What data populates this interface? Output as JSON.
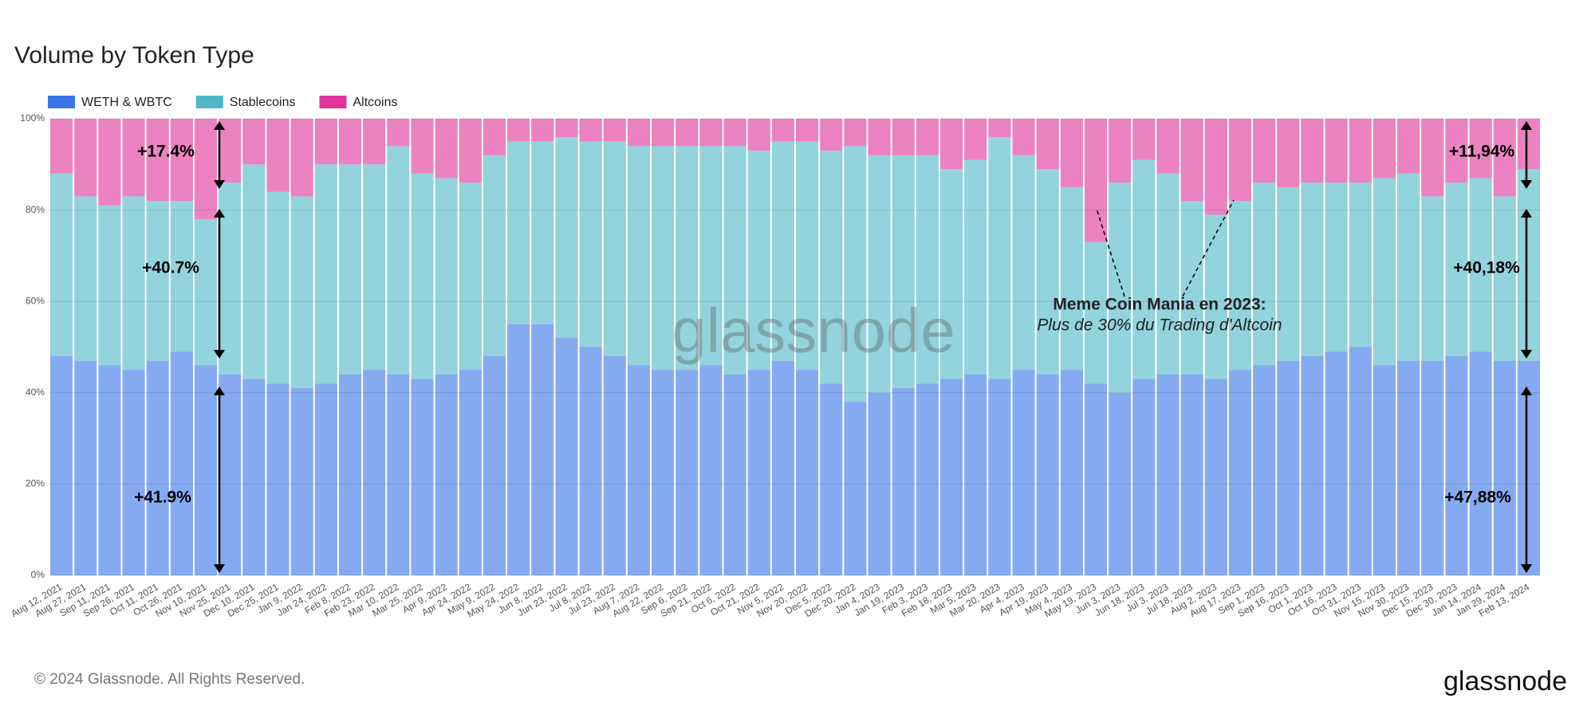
{
  "chart_data": {
    "type": "stacked_bar_100",
    "title": "Volume by Token Type",
    "categories": [
      "Aug 12, 2021",
      "Aug 27, 2021",
      "Sep 11, 2021",
      "Sep 26, 2021",
      "Oct 11, 2021",
      "Oct 26, 2021",
      "Nov 10, 2021",
      "Nov 25, 2021",
      "Dec 10, 2021",
      "Dec 25, 2021",
      "Jan 9, 2022",
      "Jan 24, 2022",
      "Feb 8, 2022",
      "Feb 23, 2022",
      "Mar 10, 2022",
      "Mar 25, 2022",
      "Apr 9, 2022",
      "Apr 24, 2022",
      "May 9, 2022",
      "May 24, 2022",
      "Jun 8, 2022",
      "Jun 23, 2022",
      "Jul 8, 2022",
      "Jul 23, 2022",
      "Aug 7, 2022",
      "Aug 22, 2022",
      "Sep 6, 2022",
      "Sep 21, 2022",
      "Oct 6, 2022",
      "Oct 21, 2022",
      "Nov 5, 2022",
      "Nov 20, 2022",
      "Dec 5, 2022",
      "Dec 20, 2022",
      "Jan 4, 2023",
      "Jan 19, 2023",
      "Feb 3, 2023",
      "Feb 18, 2023",
      "Mar 5, 2023",
      "Mar 20, 2023",
      "Apr 4, 2023",
      "Apr 19, 2023",
      "May 4, 2023",
      "May 19, 2023",
      "Jun 3, 2023",
      "Jun 18, 2023",
      "Jul 3, 2023",
      "Jul 18, 2023",
      "Aug 2, 2023",
      "Aug 17, 2023",
      "Sep 1, 2023",
      "Sep 16, 2023",
      "Oct 1, 2023",
      "Oct 16, 2023",
      "Oct 31, 2023",
      "Nov 15, 2023",
      "Nov 30, 2023",
      "Dec 15, 2023",
      "Dec 30, 2023",
      "Jan 14, 2024",
      "Jan 29, 2024",
      "Feb 13, 2024"
    ],
    "series": [
      {
        "name": "WETH & WBTC",
        "color": "#3b76e8",
        "values": [
          48,
          47,
          46,
          45,
          47,
          49,
          46,
          44,
          43,
          42,
          41,
          42,
          44,
          45,
          44,
          43,
          44,
          45,
          48,
          55,
          55,
          52,
          50,
          48,
          46,
          45,
          45,
          46,
          44,
          45,
          47,
          45,
          42,
          38,
          40,
          41,
          42,
          43,
          44,
          43,
          45,
          44,
          45,
          42,
          40,
          43,
          44,
          44,
          43,
          45,
          46,
          47,
          48,
          49,
          50,
          46,
          47,
          47,
          48,
          49,
          47,
          47
        ]
      },
      {
        "name": "Stablecoins",
        "color": "#4fb8c8",
        "values": [
          40,
          36,
          35,
          38,
          35,
          33,
          32,
          42,
          47,
          42,
          42,
          48,
          46,
          45,
          50,
          45,
          43,
          41,
          44,
          40,
          40,
          44,
          45,
          47,
          48,
          49,
          49,
          48,
          50,
          48,
          48,
          50,
          51,
          56,
          52,
          51,
          50,
          46,
          47,
          53,
          47,
          45,
          40,
          31,
          46,
          48,
          44,
          38,
          36,
          37,
          40,
          38,
          38,
          37,
          36,
          41,
          41,
          36,
          38,
          38,
          36,
          42
        ]
      },
      {
        "name": "Altcoins",
        "color": "#e0359b",
        "values": [
          12,
          17,
          19,
          17,
          18,
          18,
          22,
          14,
          10,
          16,
          17,
          10,
          10,
          10,
          6,
          12,
          13,
          14,
          8,
          5,
          5,
          4,
          5,
          5,
          6,
          6,
          6,
          6,
          6,
          7,
          5,
          5,
          7,
          6,
          8,
          8,
          8,
          11,
          9,
          4,
          8,
          11,
          15,
          27,
          14,
          9,
          12,
          18,
          21,
          18,
          14,
          15,
          14,
          14,
          14,
          13,
          12,
          17,
          14,
          13,
          17,
          11
        ]
      }
    ],
    "ylim": [
      0,
      100
    ],
    "yticks": [
      {
        "value": 0,
        "label": "0%"
      },
      {
        "value": 20,
        "label": "20%"
      },
      {
        "value": 40,
        "label": "40%"
      },
      {
        "value": 60,
        "label": "60%"
      },
      {
        "value": 80,
        "label": "80%"
      },
      {
        "value": 100,
        "label": "100%"
      }
    ],
    "grid": true,
    "annotations": [
      "+17.4%",
      "+40.7%",
      "+41.9%",
      "+11,94%",
      "+40,18%",
      "+47,88%"
    ],
    "callout": {
      "title": "Meme Coin Mania en 2023:",
      "text": "Plus de 30% du Trading d'Altcoin"
    },
    "watermark": "glassnode",
    "footer": "© 2024 Glassnode. All Rights Reserved.",
    "logo": "glassnode"
  }
}
